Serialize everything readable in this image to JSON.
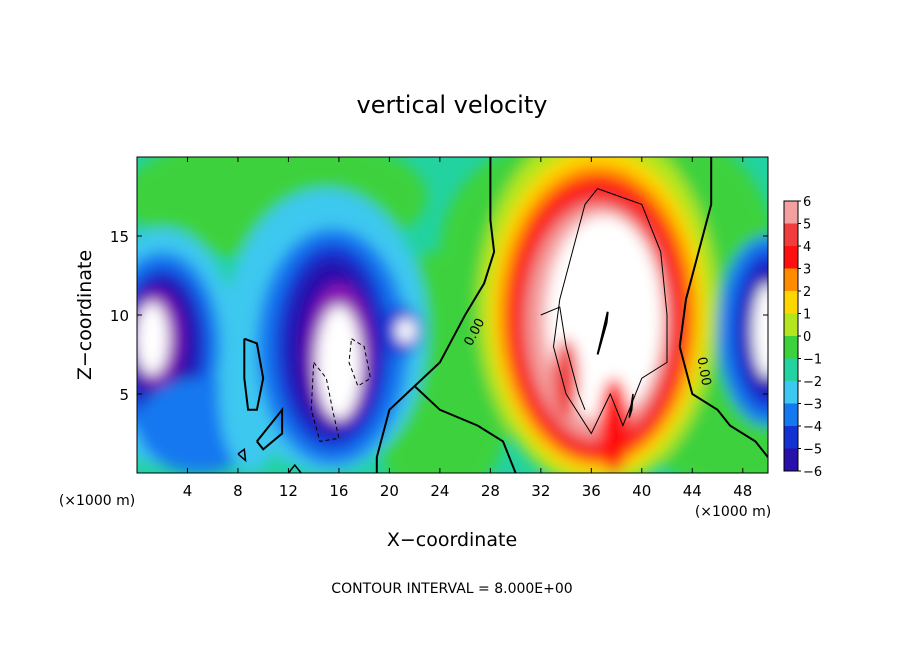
{
  "chart_data": {
    "type": "heatmap",
    "title": "vertical velocity",
    "xlabel": "X−coordinate",
    "ylabel": "Z−coordinate",
    "x_unit_left": "(×1000 m)",
    "x_unit_right": "(×1000 m)",
    "footer": "CONTOUR INTERVAL = 8.000E+00",
    "xlim": [
      0,
      50
    ],
    "ylim": [
      0,
      20
    ],
    "x_ticks": [
      4,
      8,
      12,
      16,
      20,
      24,
      28,
      32,
      36,
      40,
      44,
      48
    ],
    "x_tick_labels": [
      "4",
      "8",
      "12",
      "16",
      "20",
      "24",
      "28",
      "32",
      "36",
      "40",
      "44",
      "48"
    ],
    "y_ticks": [
      5,
      10,
      15
    ],
    "y_tick_labels": [
      "5",
      "10",
      "15"
    ],
    "contour_labels": [
      "0.00",
      "0.00"
    ],
    "colorbar": {
      "levels": [
        6,
        5,
        4,
        3,
        2,
        1,
        0,
        -1,
        -2,
        -3,
        -4,
        -5,
        -6
      ],
      "labels": [
        "6",
        "5",
        "4",
        "3",
        "2",
        "1",
        "0",
        "−1",
        "−2",
        "−3",
        "−4",
        "−5",
        "−6"
      ],
      "colors": [
        "#f4a0a0",
        "#f03c3c",
        "#ff1010",
        "#ff8c00",
        "#ffd700",
        "#b4e61e",
        "#3cd23c",
        "#22d2a0",
        "#3cc8f0",
        "#1478f0",
        "#1432d2",
        "#2810aa",
        "#8c14b4"
      ]
    },
    "background_level": -1,
    "features": [
      {
        "kind": "updraft",
        "peak": 6,
        "x_center": 36.5,
        "z_center": 10,
        "white_region": "exceeds 6"
      },
      {
        "kind": "downdraft",
        "peak": -6,
        "x_center": 1.5,
        "z_center": 8
      },
      {
        "kind": "downdraft",
        "peak": -6,
        "x_center": 16.5,
        "z_center": 7
      },
      {
        "kind": "downdraft",
        "peak": -6,
        "x_center": 49.5,
        "z_center": 9
      }
    ]
  }
}
